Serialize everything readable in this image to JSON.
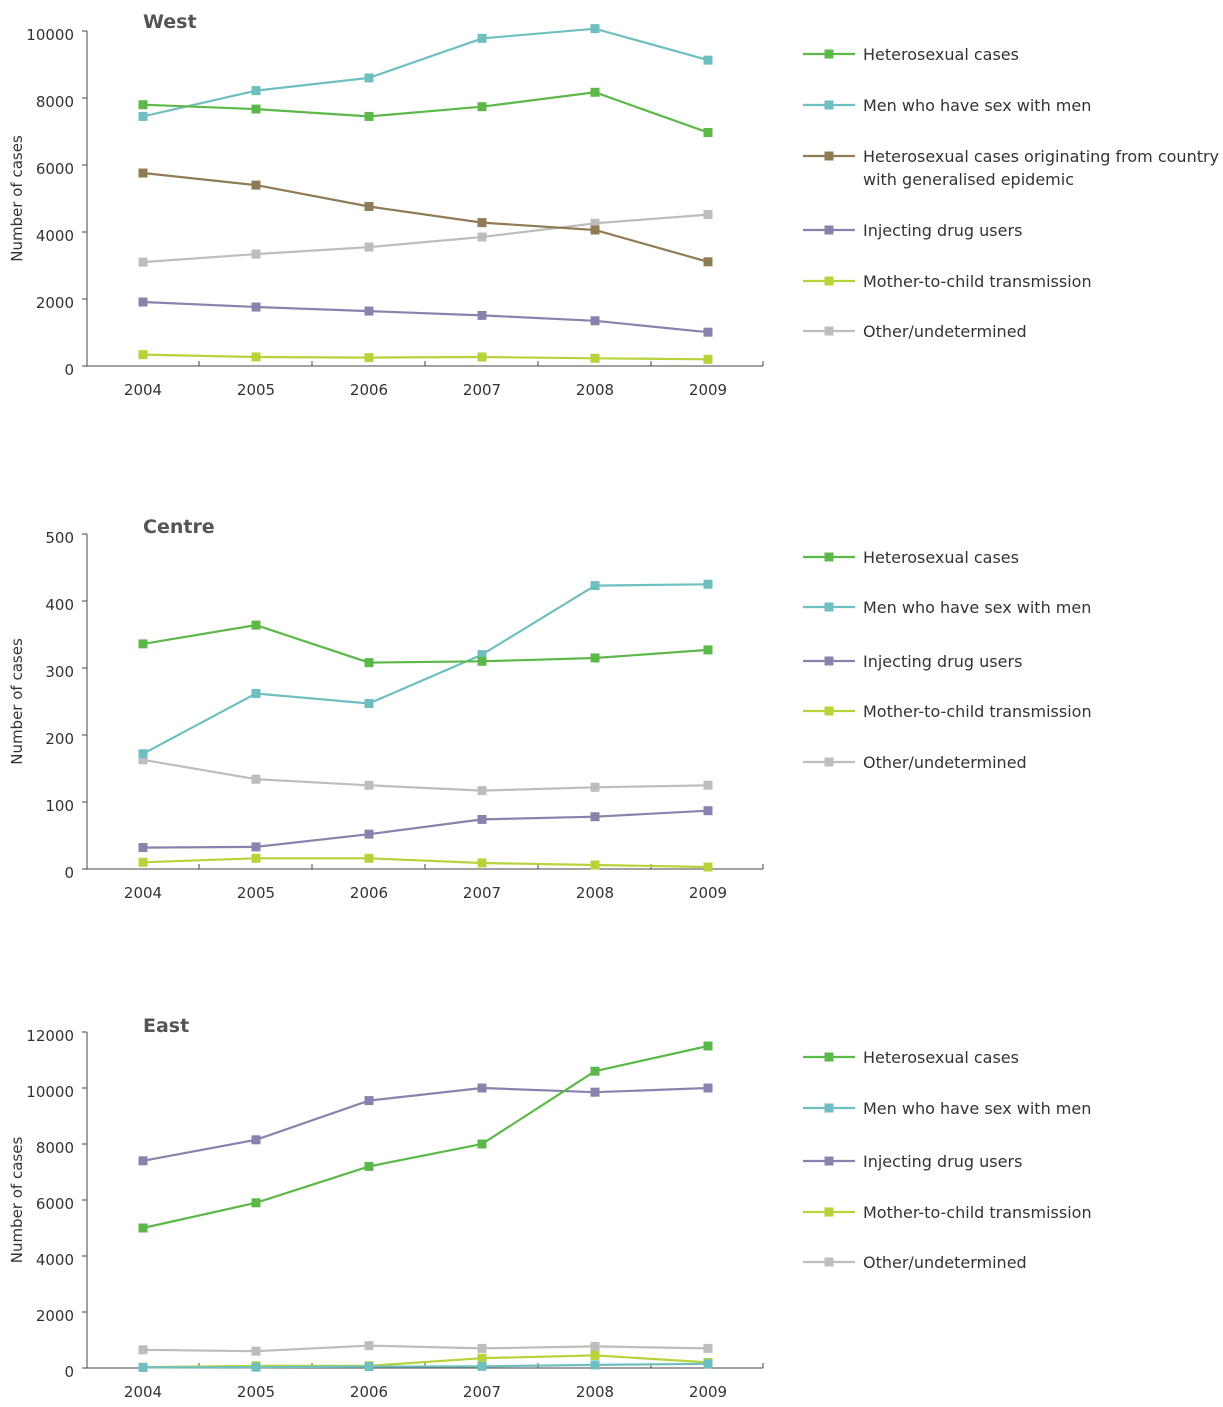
{
  "chart_data": [
    {
      "type": "line",
      "title": "West",
      "ylabel": "Number of cases",
      "xlabel": "",
      "categories": [
        "2004",
        "2005",
        "2006",
        "2007",
        "2008",
        "2009"
      ],
      "ylim": [
        0,
        10000
      ],
      "yticks": [
        0,
        2000,
        4000,
        6000,
        8000,
        10000
      ],
      "grid": false,
      "legend_position": "right",
      "series": [
        {
          "name": "Heterosexual cases",
          "color": "#5db84a",
          "values": [
            7800,
            7670,
            7450,
            7740,
            8170,
            6970
          ]
        },
        {
          "name": "Men who have sex with men",
          "color": "#6fbfc0",
          "values": [
            7450,
            8220,
            8600,
            9780,
            10070,
            9130
          ]
        },
        {
          "name": "Heterosexual cases originating from country with generalised epidemic",
          "color": "#8f7b55",
          "values": [
            5760,
            5400,
            4760,
            4280,
            4060,
            3110
          ]
        },
        {
          "name": "Injecting drug users",
          "color": "#8a82ad",
          "values": [
            1910,
            1760,
            1640,
            1510,
            1350,
            1010
          ]
        },
        {
          "name": "Mother-to-child transmission",
          "color": "#b6d43a",
          "values": [
            340,
            270,
            250,
            270,
            230,
            200
          ]
        },
        {
          "name": "Other/undetermined",
          "color": "#bdbdbd",
          "values": [
            3100,
            3340,
            3550,
            3850,
            4260,
            4520
          ]
        }
      ]
    },
    {
      "type": "line",
      "title": "Centre",
      "ylabel": "Number of cases",
      "xlabel": "",
      "categories": [
        "2004",
        "2005",
        "2006",
        "2007",
        "2008",
        "2009"
      ],
      "ylim": [
        0,
        500
      ],
      "yticks": [
        0,
        100,
        200,
        300,
        400,
        500
      ],
      "grid": false,
      "legend_position": "right",
      "series": [
        {
          "name": "Heterosexual cases",
          "color": "#5db84a",
          "values": [
            336,
            364,
            308,
            310,
            315,
            327
          ]
        },
        {
          "name": "Men who have sex with men",
          "color": "#6fbfc0",
          "values": [
            172,
            262,
            247,
            320,
            423,
            425
          ]
        },
        {
          "name": "Injecting drug users",
          "color": "#8a82ad",
          "values": [
            32,
            33,
            52,
            74,
            78,
            87
          ]
        },
        {
          "name": "Mother-to-child transmission",
          "color": "#b6d43a",
          "values": [
            10,
            16,
            16,
            9,
            6,
            3
          ]
        },
        {
          "name": "Other/undetermined",
          "color": "#bdbdbd",
          "values": [
            163,
            134,
            125,
            117,
            122,
            125
          ]
        }
      ]
    },
    {
      "type": "line",
      "title": "East",
      "ylabel": "Number of cases",
      "xlabel": "",
      "categories": [
        "2004",
        "2005",
        "2006",
        "2007",
        "2008",
        "2009"
      ],
      "ylim": [
        0,
        12000
      ],
      "yticks": [
        0,
        2000,
        4000,
        6000,
        8000,
        10000,
        12000
      ],
      "grid": false,
      "legend_position": "right",
      "series": [
        {
          "name": "Heterosexual cases",
          "color": "#5db84a",
          "values": [
            5000,
            5900,
            7200,
            8000,
            10600,
            11500
          ]
        },
        {
          "name": "Men who have sex with men",
          "color": "#6fbfc0",
          "values": [
            20,
            30,
            50,
            60,
            110,
            150
          ]
        },
        {
          "name": "Injecting drug users",
          "color": "#8a82ad",
          "values": [
            7400,
            8150,
            9550,
            10000,
            9850,
            10000
          ]
        },
        {
          "name": "Mother-to-child transmission",
          "color": "#b6d43a",
          "values": [
            30,
            80,
            80,
            350,
            450,
            200
          ]
        },
        {
          "name": "Other/undetermined",
          "color": "#bdbdbd",
          "values": [
            650,
            600,
            800,
            700,
            770,
            700
          ]
        }
      ]
    }
  ]
}
